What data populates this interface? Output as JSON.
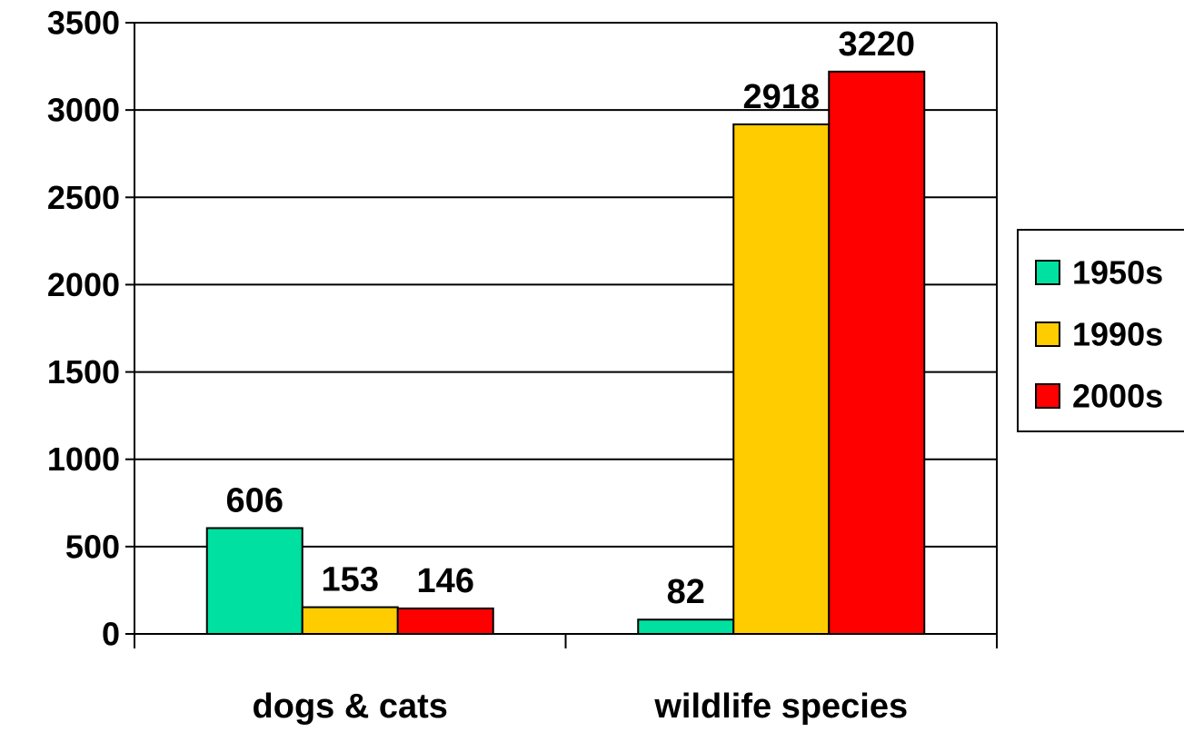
{
  "chart_data": {
    "type": "bar",
    "categories": [
      "dogs & cats",
      "wildlife species"
    ],
    "series": [
      {
        "name": "1950s",
        "values": [
          606,
          82
        ],
        "color": "#00e0a0"
      },
      {
        "name": "1990s",
        "values": [
          153,
          2918
        ],
        "color": "#ffcc00"
      },
      {
        "name": "2000s",
        "values": [
          146,
          3220
        ],
        "color": "#ff0000"
      }
    ],
    "ylim": [
      0,
      3500
    ],
    "yticks": [
      0,
      500,
      1000,
      1500,
      2000,
      2500,
      3000,
      3500
    ],
    "grid": true,
    "legend_position": "right",
    "data_labels": true
  }
}
